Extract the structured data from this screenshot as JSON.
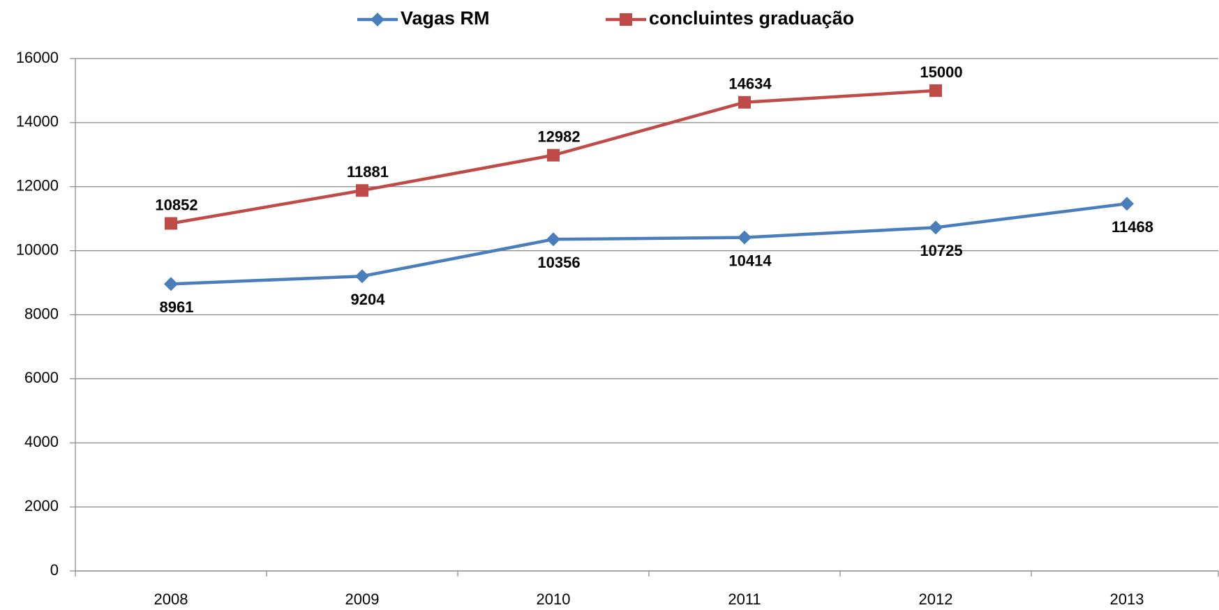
{
  "chart_data": {
    "type": "line",
    "categories": [
      "2008",
      "2009",
      "2010",
      "2011",
      "2012",
      "2013"
    ],
    "series": [
      {
        "name": "Vagas RM",
        "color": "#4a7ebb",
        "marker": "diamond",
        "values": [
          8961,
          9204,
          10356,
          10414,
          10725,
          11468
        ]
      },
      {
        "name": "concluintes graduação",
        "color": "#be4b48",
        "marker": "square",
        "values": [
          10852,
          11881,
          12982,
          14634,
          15000,
          null
        ]
      }
    ],
    "ylim": [
      0,
      16000
    ],
    "yticks": [
      0,
      2000,
      4000,
      6000,
      8000,
      10000,
      12000,
      14000,
      16000
    ],
    "grid": true,
    "legend": "top"
  }
}
